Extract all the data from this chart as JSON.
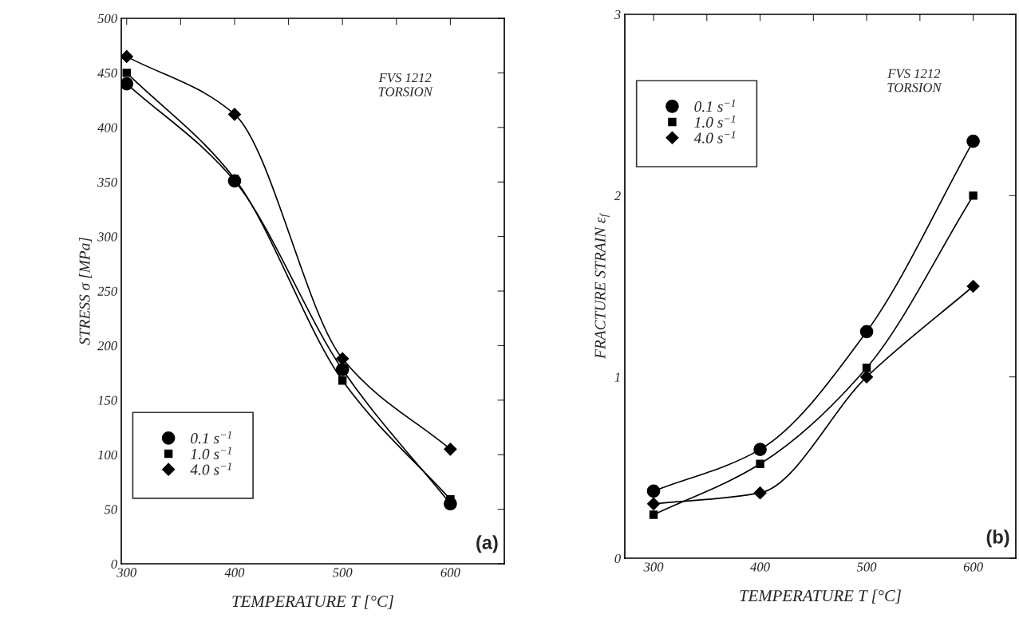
{
  "chart_data": [
    {
      "type": "line",
      "xlabel": "TEMPERATURE T [°C]",
      "ylabel": "STRESS σ [MPa]",
      "x": [
        300,
        400,
        500,
        600
      ],
      "series": [
        {
          "name": "0.1 s$^{−1}$",
          "color": "#000000",
          "marker": "circle",
          "values": [
            440,
            351,
            178,
            55
          ]
        },
        {
          "name": "1.0 s$^{−1}$",
          "color": "#000000",
          "marker": "square",
          "values": [
            450,
            353,
            168,
            59
          ]
        },
        {
          "name": "4.0 s$^{−1}$",
          "color": "#000000",
          "marker": "diamond",
          "values": [
            465,
            412,
            188,
            105
          ]
        }
      ],
      "xlim": [
        295,
        650
      ],
      "xticks": [
        300,
        {
          "value": 350,
          "label": null
        },
        400,
        {
          "value": 450,
          "label": null
        },
        500,
        {
          "value": 550,
          "label": null
        },
        600
      ],
      "ylim": [
        0,
        500
      ],
      "yticks": [
        0,
        50,
        100,
        150,
        200,
        250,
        300,
        350,
        400,
        450,
        500
      ],
      "grid": false,
      "legend": "bottom left",
      "annotations": [
        {
          "text": "FVS 1212\nTORSION"
        },
        {
          "text": "(a)"
        }
      ]
    },
    {
      "type": "line",
      "xlabel": "TEMPERATURE T [°C]",
      "ylabel": "FRACTURE STRAIN ε$_{f}$",
      "x": [
        300,
        400,
        500,
        600
      ],
      "series": [
        {
          "name": "0.1 s$^{−1}$",
          "color": "#000000",
          "marker": "circle",
          "values": [
            0.37,
            0.6,
            1.25,
            2.3
          ]
        },
        {
          "name": "1.0 s$^{−1}$",
          "color": "#000000",
          "marker": "square",
          "values": [
            0.24,
            0.52,
            1.05,
            2.0
          ]
        },
        {
          "name": "4.0 s$^{−1}$",
          "color": "#000000",
          "marker": "diamond",
          "values": [
            0.3,
            0.36,
            1.0,
            1.5
          ]
        }
      ],
      "xlim": [
        273,
        640
      ],
      "xticks": [
        300,
        {
          "value": 350,
          "label": null
        },
        400,
        {
          "value": 450,
          "label": null
        },
        500,
        {
          "value": 550,
          "label": null
        },
        600
      ],
      "ylim": [
        0,
        3
      ],
      "yticks": [
        0,
        1,
        2,
        3
      ],
      "grid": false,
      "legend": "top left",
      "annotations": [
        {
          "text": "FVS 1212\nTORSION"
        },
        {
          "text": "(b)"
        }
      ]
    }
  ]
}
